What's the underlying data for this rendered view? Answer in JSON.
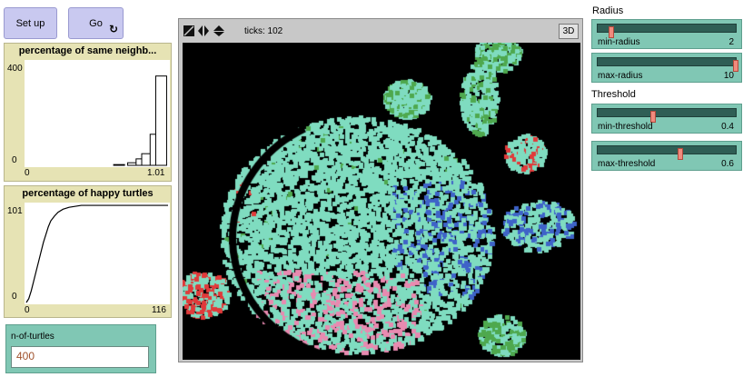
{
  "buttons": {
    "setup": "Set up",
    "go": "Go",
    "go_forever_icon": "forever-arrows-icon"
  },
  "plot_same": {
    "title": "percentage of same neighb...",
    "y_max": "400",
    "y_min": "0",
    "x_min": "0",
    "x_max": "1.01"
  },
  "plot_happy": {
    "title": "percentage of happy turtles",
    "y_max": "101",
    "y_min": "0",
    "x_min": "0",
    "x_max": "116"
  },
  "input": {
    "label": "n-of-turtles",
    "value": "400"
  },
  "view": {
    "ticks_label": "ticks: 102",
    "three_d": "3D",
    "speed_icons": "speed-control-icons",
    "colors": {
      "background": "#000000",
      "teal": "#7fdcc0",
      "red": "#e03a3a",
      "blue": "#3e63c8",
      "green": "#4ea84e",
      "pink": "#e88ab0"
    }
  },
  "sliders": {
    "radius_heading": "Radius",
    "threshold_heading": "Threshold",
    "min_radius": {
      "name": "min-radius",
      "value": "2",
      "fraction": 0.1
    },
    "max_radius": {
      "name": "max-radius",
      "value": "10",
      "fraction": 1.0
    },
    "min_threshold": {
      "name": "min-threshold",
      "value": "0.4",
      "fraction": 0.4
    },
    "max_threshold": {
      "name": "max-threshold",
      "value": "0.6",
      "fraction": 0.6
    }
  },
  "chart_data": [
    {
      "type": "bar",
      "title": "percentage of same neighb...",
      "xlim": [
        0,
        1.01
      ],
      "ylim": [
        0,
        400
      ],
      "bins": [
        {
          "x": 0.7,
          "value": 3
        },
        {
          "x": 0.8,
          "value": 10
        },
        {
          "x": 0.86,
          "value": 25
        },
        {
          "x": 0.9,
          "value": 45
        },
        {
          "x": 0.96,
          "value": 120
        },
        {
          "x": 1.0,
          "value": 345
        }
      ]
    },
    {
      "type": "line",
      "title": "percentage of happy turtles",
      "xlim": [
        0,
        116
      ],
      "ylim": [
        0,
        101
      ],
      "points": [
        [
          0,
          0
        ],
        [
          2,
          4
        ],
        [
          4,
          12
        ],
        [
          6,
          22
        ],
        [
          8,
          32
        ],
        [
          10,
          42
        ],
        [
          12,
          52
        ],
        [
          14,
          62
        ],
        [
          16,
          70
        ],
        [
          18,
          78
        ],
        [
          20,
          84
        ],
        [
          23,
          89
        ],
        [
          26,
          93
        ],
        [
          30,
          96
        ],
        [
          35,
          98
        ],
        [
          45,
          100
        ],
        [
          60,
          100
        ],
        [
          80,
          100
        ],
        [
          100,
          100
        ],
        [
          116,
          100
        ]
      ]
    }
  ]
}
